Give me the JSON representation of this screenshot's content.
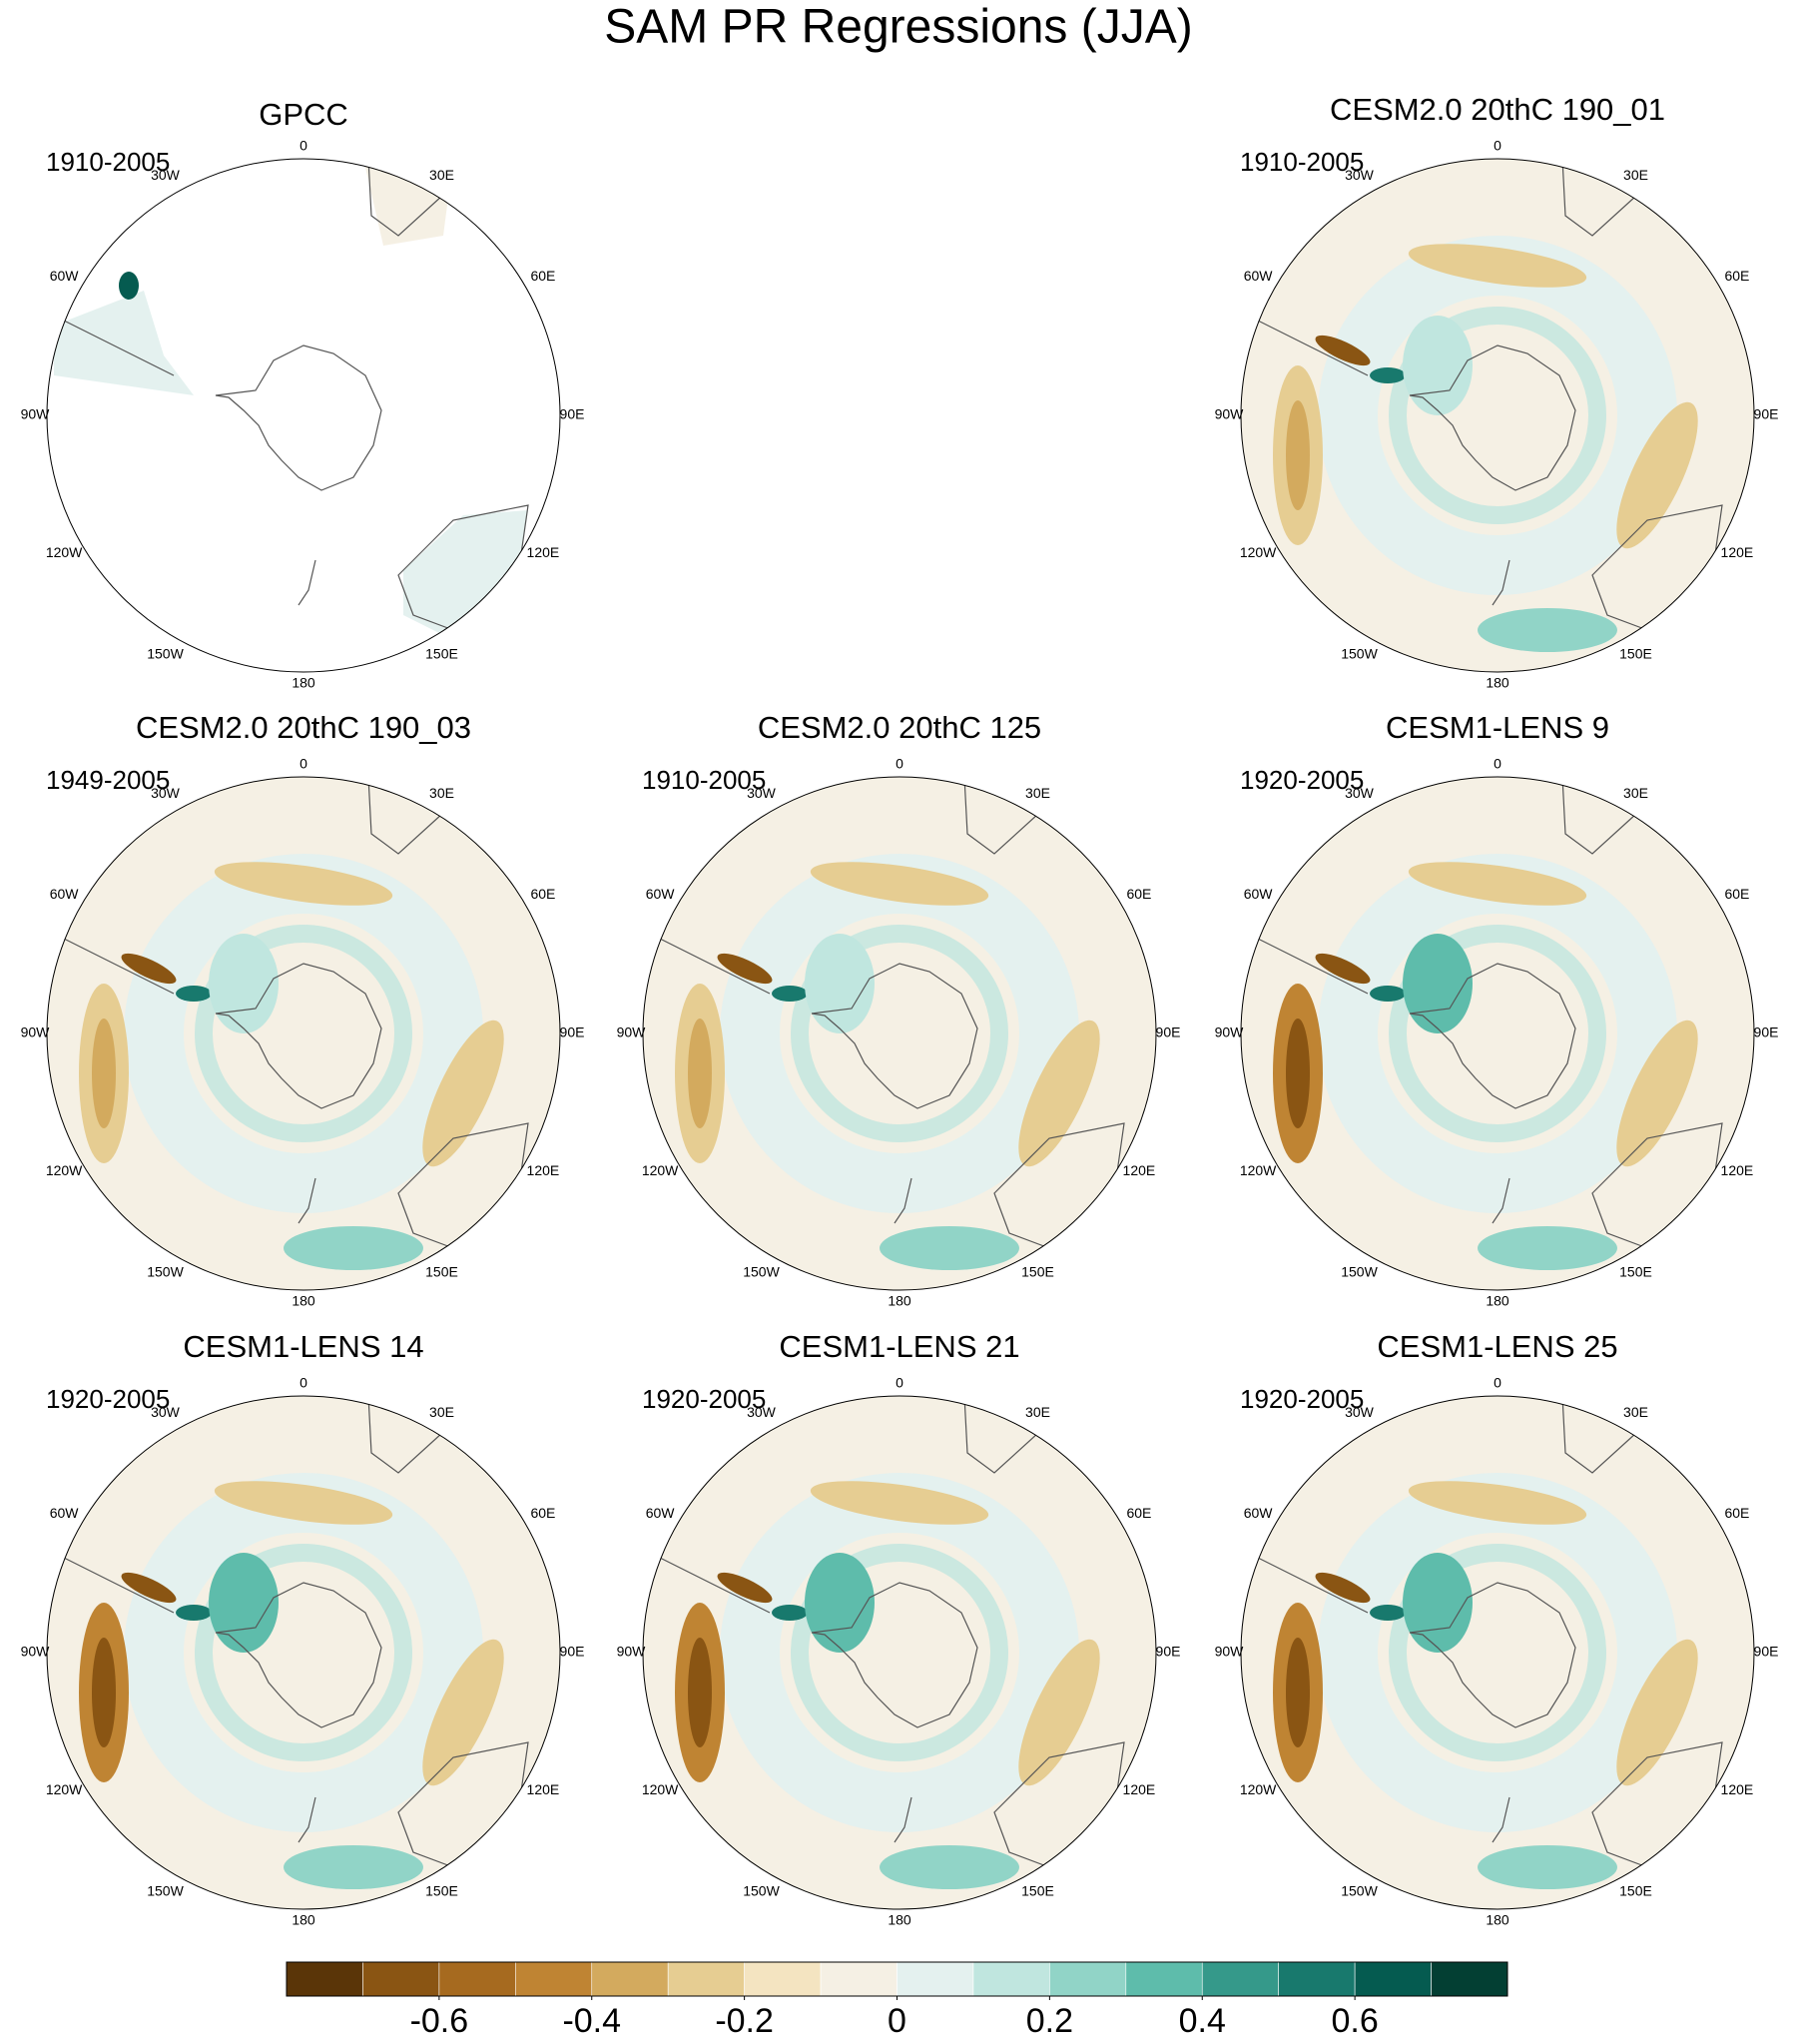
{
  "title": "SAM PR Regressions (JJA)",
  "lon_labels": [
    "0",
    "30E",
    "60E",
    "90E",
    "120E",
    "150E",
    "180",
    "150W",
    "120W",
    "90W",
    "60W",
    "30W"
  ],
  "panels": [
    {
      "title": "GPCC",
      "period": "1910-2005"
    },
    {
      "title": "CESM2.0 20thC 190_01",
      "period": "1910-2005"
    },
    {
      "title": "CESM2.0 20thC 190_03",
      "period": "1949-2005"
    },
    {
      "title": "CESM2.0 20thC 125",
      "period": "1910-2005"
    },
    {
      "title": "CESM1-LENS 9",
      "period": "1920-2005"
    },
    {
      "title": "CESM1-LENS 14",
      "period": "1920-2005"
    },
    {
      "title": "CESM1-LENS 21",
      "period": "1920-2005"
    },
    {
      "title": "CESM1-LENS 25",
      "period": "1920-2005"
    }
  ],
  "colorbar": {
    "xlim": [
      -0.8,
      0.8
    ],
    "xticks": [
      -0.6,
      -0.4,
      -0.2,
      0,
      0.2,
      0.4,
      0.6
    ],
    "colors": [
      "#5a3508",
      "#8a5513",
      "#a66a1f",
      "#bf8433",
      "#d3aa5e",
      "#e6cd92",
      "#f4e4c1",
      "#f5f0e4",
      "#e4f1ef",
      "#c0e6df",
      "#91d4c7",
      "#5ebcab",
      "#35998a",
      "#18796d",
      "#055b50",
      "#033f33"
    ]
  }
}
